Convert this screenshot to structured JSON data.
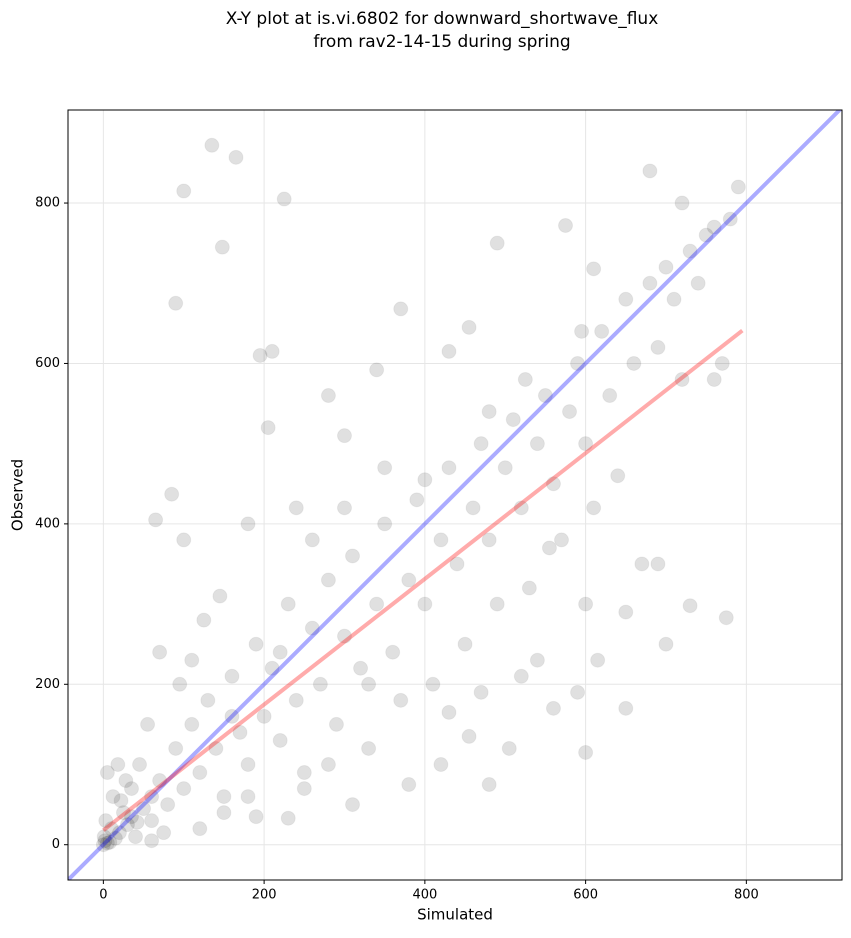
{
  "chart_data": {
    "type": "scatter",
    "title": [
      "X-Y plot at is.vi.6802 for downward_shortwave_flux",
      "from rav2-14-15 during spring"
    ],
    "x_label": "Simulated",
    "y_label": "Observed",
    "xlim": [
      -44,
      919
    ],
    "ylim": [
      -44,
      916
    ],
    "xticks": [
      0,
      200,
      400,
      600,
      800
    ],
    "yticks": [
      0,
      200,
      400,
      600,
      800
    ],
    "grid": true,
    "color": "#000000",
    "x": [
      0,
      2,
      5,
      1,
      8,
      10,
      15,
      3,
      20,
      25,
      12,
      30,
      40,
      5,
      18,
      35,
      50,
      45,
      60,
      70,
      80,
      90,
      100,
      110,
      95,
      120,
      130,
      140,
      150,
      160,
      170,
      180,
      190,
      200,
      210,
      220,
      230,
      240,
      250,
      260,
      270,
      280,
      290,
      300,
      310,
      320,
      330,
      340,
      350,
      360,
      370,
      380,
      390,
      400,
      410,
      420,
      430,
      440,
      450,
      460,
      470,
      480,
      490,
      500,
      510,
      520,
      530,
      540,
      550,
      560,
      570,
      580,
      590,
      600,
      610,
      620,
      630,
      640,
      650,
      660,
      670,
      680,
      690,
      700,
      710,
      720,
      730,
      740,
      750,
      760,
      770,
      780,
      790,
      680,
      720,
      100,
      135,
      165,
      148,
      90,
      225,
      195,
      210,
      370,
      455,
      490,
      575,
      595,
      610,
      430,
      340,
      180,
      85,
      65,
      205,
      280,
      300,
      400,
      480,
      525,
      600,
      505,
      480,
      420,
      380,
      310,
      250,
      190,
      230,
      430,
      520,
      560,
      650,
      700,
      760,
      775,
      730,
      690,
      650,
      600,
      555,
      590,
      470,
      455,
      540,
      615,
      330,
      280,
      180,
      150,
      120,
      75,
      60,
      42,
      22,
      28,
      55,
      70,
      110,
      125,
      100,
      145,
      240,
      260,
      350,
      300,
      220,
      160,
      60,
      35
    ],
    "values": [
      0,
      5,
      2,
      10,
      3,
      20,
      8,
      30,
      15,
      40,
      60,
      25,
      10,
      90,
      100,
      70,
      45,
      100,
      30,
      80,
      50,
      120,
      70,
      150,
      200,
      90,
      180,
      120,
      60,
      210,
      140,
      100,
      250,
      160,
      220,
      130,
      300,
      180,
      90,
      270,
      200,
      330,
      150,
      260,
      360,
      220,
      120,
      300,
      400,
      240,
      180,
      330,
      430,
      300,
      200,
      380,
      470,
      350,
      250,
      420,
      500,
      380,
      300,
      470,
      530,
      420,
      320,
      500,
      560,
      450,
      380,
      540,
      600,
      500,
      420,
      640,
      560,
      460,
      680,
      600,
      350,
      700,
      620,
      720,
      680,
      580,
      740,
      700,
      760,
      770,
      600,
      780,
      820,
      840,
      800,
      815,
      872,
      857,
      745,
      675,
      805,
      610,
      615,
      668,
      645,
      750,
      772,
      640,
      718,
      615,
      592,
      400,
      437,
      405,
      520,
      560,
      510,
      455,
      540,
      580,
      115,
      120,
      75,
      100,
      75,
      50,
      70,
      35,
      33,
      165,
      210,
      170,
      170,
      250,
      580,
      283,
      298,
      350,
      290,
      300,
      370,
      190,
      190,
      135,
      230,
      230,
      200,
      100,
      60,
      40,
      20,
      15,
      5,
      28,
      55,
      80,
      150,
      240,
      230,
      280,
      380,
      310,
      420,
      380,
      470,
      420,
      240,
      160,
      60,
      35
    ],
    "lines": [
      {
        "color": "#0000ff",
        "x": [
          -44,
          919
        ],
        "values": [
          -44,
          919
        ]
      },
      {
        "color": "#ff0000",
        "x": [
          0,
          795
        ],
        "values": [
          18,
          641
        ]
      }
    ]
  }
}
